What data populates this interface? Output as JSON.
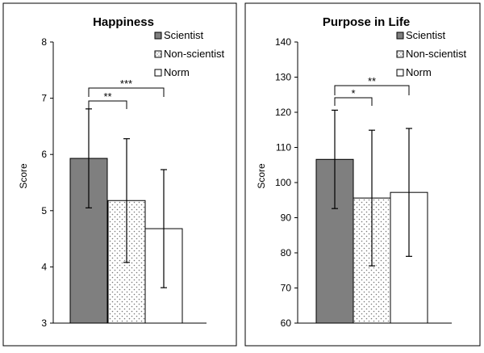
{
  "chart_data": [
    {
      "type": "bar",
      "title": "Happiness",
      "xlabel": "",
      "ylabel": "Score",
      "ylim": [
        3,
        8
      ],
      "yticks": [
        3,
        4,
        5,
        6,
        7,
        8
      ],
      "grid": false,
      "legend_position": "top-right",
      "categories": [
        "Scientist",
        "Non-scientist",
        "Norm"
      ],
      "series": [
        {
          "name": "Scientist",
          "value": 5.93,
          "error": 0.88,
          "fill": "#7f7f7f",
          "pattern": "solid"
        },
        {
          "name": "Non-scientist",
          "value": 5.18,
          "error": 1.1,
          "fill": "#ffffff",
          "pattern": "dots"
        },
        {
          "name": "Norm",
          "value": 4.68,
          "error": 1.05,
          "fill": "#ffffff",
          "pattern": "none"
        }
      ],
      "significance": [
        {
          "from": "Scientist",
          "to": "Non-scientist",
          "label": "**"
        },
        {
          "from": "Scientist",
          "to": "Norm",
          "label": "***"
        }
      ]
    },
    {
      "type": "bar",
      "title": "Purpose in Life",
      "xlabel": "",
      "ylabel": "Score",
      "ylim": [
        60,
        140
      ],
      "yticks": [
        60,
        70,
        80,
        90,
        100,
        110,
        120,
        130,
        140
      ],
      "grid": false,
      "legend_position": "top-right",
      "categories": [
        "Scientist",
        "Non-scientist",
        "Norm"
      ],
      "series": [
        {
          "name": "Scientist",
          "value": 106.6,
          "error": 14,
          "fill": "#7f7f7f",
          "pattern": "solid"
        },
        {
          "name": "Non-scientist",
          "value": 95.6,
          "error": 19.3,
          "fill": "#ffffff",
          "pattern": "dots"
        },
        {
          "name": "Norm",
          "value": 97.2,
          "error": 18.2,
          "fill": "#ffffff",
          "pattern": "none"
        }
      ],
      "significance": [
        {
          "from": "Scientist",
          "to": "Non-scientist",
          "label": "*"
        },
        {
          "from": "Scientist",
          "to": "Norm",
          "label": "**"
        }
      ]
    }
  ]
}
